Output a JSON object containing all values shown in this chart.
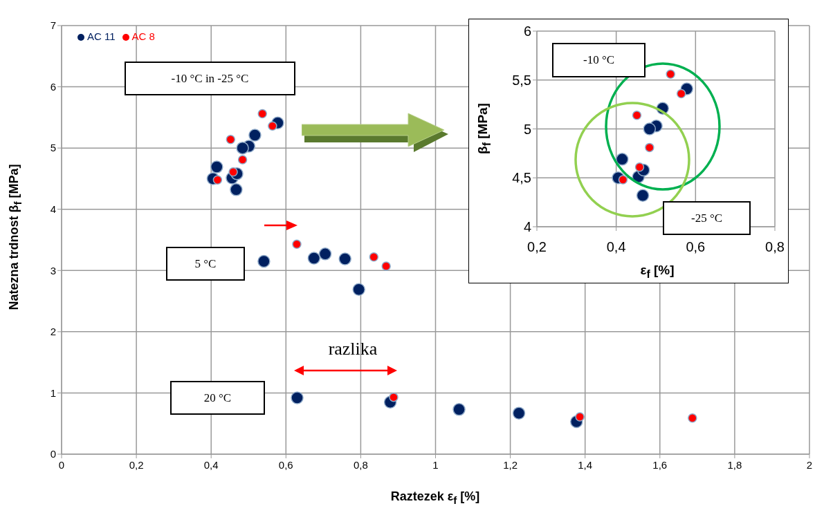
{
  "chart_data": [
    {
      "type": "scatter",
      "xlabel": "Raztezek ε$_{f}$ [%]",
      "ylabel": "Natezna trdnost β$_{f}$ [MPa]",
      "xlim": [
        0,
        2
      ],
      "ylim": [
        0,
        7
      ],
      "xticks": [
        0,
        {
          "value": 0.2,
          "label": "0,2"
        },
        {
          "value": 0.4,
          "label": "0,4"
        },
        {
          "value": 0.6,
          "label": "0,6"
        },
        {
          "value": 0.8,
          "label": "0,8"
        },
        1,
        {
          "value": 1.2,
          "label": "1,2"
        },
        {
          "value": 1.4,
          "label": "1,4"
        },
        {
          "value": 1.6,
          "label": "1,6"
        },
        {
          "value": 1.8,
          "label": "1,8"
        },
        2
      ],
      "yticks": [
        0,
        1,
        2,
        3,
        4,
        5,
        6,
        7
      ],
      "grid": true,
      "legend": "top left",
      "marker": "circle",
      "annotations": [
        "-10 °C in -25 °C",
        "5 °C",
        "20 °C",
        "razlika"
      ],
      "series": [
        {
          "name": "AC 11",
          "color": "#002060",
          "x": [
            0.578,
            0.517,
            0.501,
            0.484,
            0.415,
            0.405,
            0.456,
            0.469,
            0.467,
            0.541,
            0.675,
            0.705,
            0.758,
            0.795,
            0.63,
            0.879,
            1.063,
            1.223,
            1.377
          ],
          "values": [
            5.41,
            5.21,
            5.03,
            5.0,
            4.69,
            4.5,
            4.51,
            4.58,
            4.32,
            3.15,
            3.2,
            3.27,
            3.19,
            2.69,
            0.92,
            0.85,
            0.73,
            0.67,
            0.53
          ]
        },
        {
          "name": "AC 8",
          "color": "#ff0000",
          "x": [
            0.537,
            0.564,
            0.452,
            0.484,
            0.459,
            0.417,
            0.629,
            0.835,
            0.868,
            0.888,
            1.386,
            1.687
          ],
          "values": [
            5.56,
            5.36,
            5.14,
            4.81,
            4.61,
            4.48,
            3.43,
            3.22,
            3.07,
            0.93,
            0.61,
            0.59
          ]
        }
      ]
    },
    {
      "type": "scatter",
      "xlabel": "ε$_{f}$ [%]",
      "ylabel": "β$_{f}$ [MPa]",
      "xlim": [
        0.2,
        0.8
      ],
      "ylim": [
        4,
        6
      ],
      "xticks": [
        {
          "value": 0.2,
          "label": "0,2"
        },
        {
          "value": 0.4,
          "label": "0,4"
        },
        {
          "value": 0.6,
          "label": "0,6"
        },
        {
          "value": 0.8,
          "label": "0,8"
        }
      ],
      "yticks": [
        4,
        {
          "value": 4.5,
          "label": "4,5"
        },
        5,
        {
          "value": 5.5,
          "label": "5,5"
        },
        6
      ],
      "grid": true,
      "marker": "circle",
      "annotations": [
        "-10 °C",
        "-25 °C"
      ],
      "series": [
        {
          "color": "#002060",
          "x": [
            0.578,
            0.517,
            0.501,
            0.484,
            0.415,
            0.405,
            0.456,
            0.469,
            0.467
          ],
          "values": [
            5.41,
            5.21,
            5.03,
            5.0,
            4.69,
            4.5,
            4.51,
            4.58,
            4.32
          ]
        },
        {
          "color": "#ff0000",
          "x": [
            0.537,
            0.564,
            0.452,
            0.484,
            0.459,
            0.417
          ],
          "values": [
            5.56,
            5.36,
            5.14,
            4.81,
            4.61,
            4.48
          ]
        }
      ]
    }
  ]
}
